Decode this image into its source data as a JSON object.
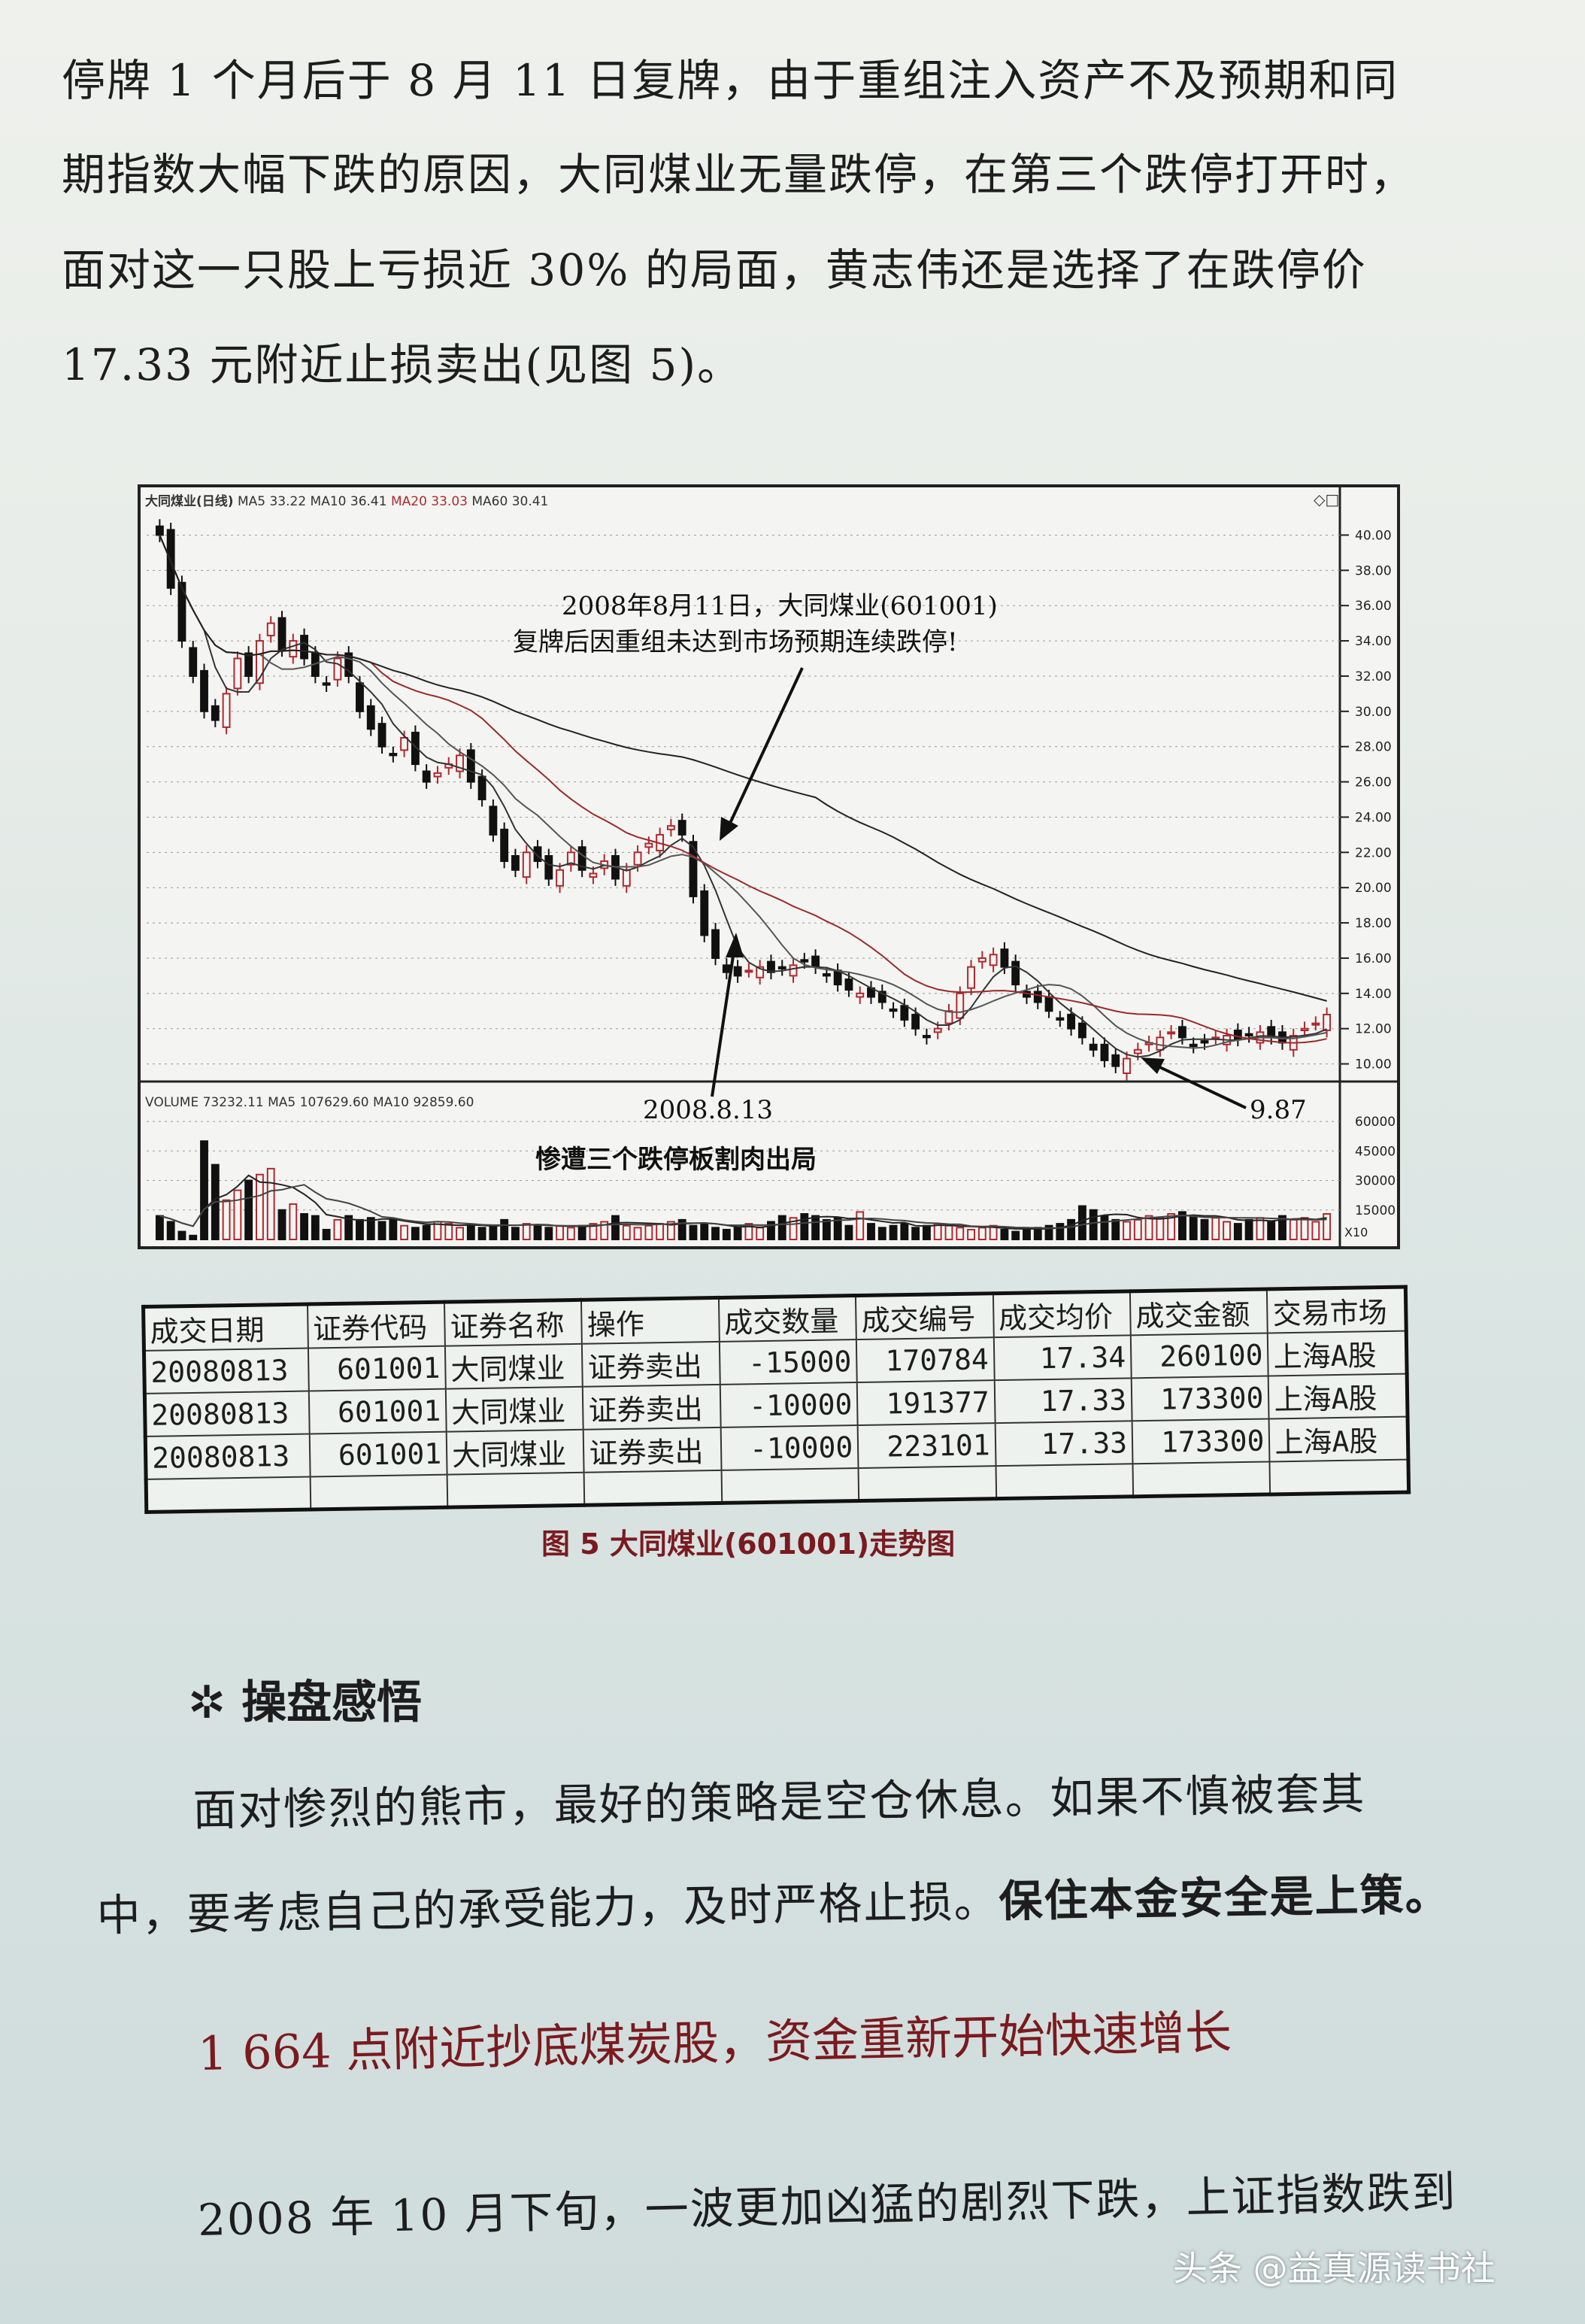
{
  "body_text": {
    "lines": [
      "停牌 1 个月后于 8 月 11 日复牌，由于重组注入资产不及预期和同",
      "期指数大幅下跌的原因，大同煤业无量跌停，在第三个跌停打开时，",
      "面对这一只股上亏损近 30% 的局面，黄志伟还是选择了在跌停价",
      "17.33 元附近止损卖出(见图 5)。"
    ]
  },
  "chart_data": {
    "type": "candlestick",
    "title": "大同煤业(日线)",
    "indicators": {
      "ma5": "MA5  33.22",
      "ma10": "MA10  36.41",
      "ma20": "MA20  33.03",
      "ma60": "MA60  30.41"
    },
    "volume_header": {
      "label": "VOLUME  73232.11",
      "ma5": "MA5  107629.60",
      "ma10": "MA10  92859.60"
    },
    "price_ticks": [
      "40.00",
      "38.00",
      "36.00",
      "34.00",
      "32.00",
      "30.00",
      "28.00",
      "26.00",
      "24.00",
      "22.00",
      "20.00",
      "18.00",
      "16.00",
      "14.00",
      "12.00",
      "10.00"
    ],
    "ylim": [
      9,
      41
    ],
    "volume_ticks": [
      "60000",
      "45000",
      "30000",
      "15000"
    ],
    "volume_unit": "X10",
    "volume_ylim": [
      0,
      65000
    ],
    "closes": [
      40,
      37,
      34,
      32,
      30,
      29.5,
      31,
      33,
      32,
      34,
      35,
      33.5,
      34,
      33,
      32,
      31.5,
      33,
      32,
      30,
      29,
      28,
      27.5,
      28.5,
      27,
      26,
      26.5,
      27,
      27.5,
      26,
      25,
      23,
      21.5,
      21,
      22,
      21.5,
      20.5,
      21,
      22,
      21,
      20.8,
      21.5,
      20.5,
      21,
      22,
      22.5,
      23,
      23.5,
      23,
      19.5,
      17.3,
      16,
      15.2,
      15,
      15.3,
      15.5,
      15.2,
      15.4,
      15.6,
      15.8,
      15.5,
      15,
      14.5,
      14.2,
      14,
      13.8,
      13.5,
      13,
      12.5,
      12,
      11.5,
      12,
      13,
      14,
      15.5,
      16,
      16.2,
      15.5,
      14.5,
      13.8,
      13.5,
      13,
      12.5,
      12,
      11.5,
      10.8,
      10.2,
      9.87,
      10.3,
      10.8,
      11.2,
      11.5,
      11.8,
      11.5,
      11,
      11.2,
      11.5,
      11.6,
      11.4,
      11.6,
      11.8,
      11.5,
      11.2,
      11.6,
      12,
      12.3,
      12.8
    ],
    "volumes": [
      12000,
      9000,
      4000,
      2000,
      50000,
      38000,
      20000,
      25000,
      30000,
      33000,
      36000,
      15000,
      18000,
      13000,
      12000,
      5000,
      10000,
      12000,
      10000,
      11000,
      9000,
      10000,
      7000,
      6000,
      7000,
      9000,
      8000,
      6000,
      7000,
      6000,
      7000,
      10000,
      6000,
      8000,
      7000,
      6000,
      7000,
      6000,
      7000,
      8000,
      9000,
      12000,
      7000,
      6000,
      7000,
      8000,
      9000,
      10000,
      7000,
      8000,
      6000,
      5000,
      6000,
      8000,
      6000,
      9000,
      12000,
      11000,
      13000,
      12000,
      10000,
      11000,
      7000,
      14000,
      8000,
      6000,
      7000,
      8000,
      6000,
      7000,
      8000,
      7000,
      6000,
      5000,
      6000,
      7000,
      5000,
      4000,
      5000,
      6000,
      7000,
      8000,
      10000,
      17000,
      15000,
      12000,
      10000,
      9000,
      10000,
      12000,
      11000,
      13000,
      14000,
      12000,
      10000,
      11000,
      9000,
      8000,
      10000,
      11000,
      9000,
      12000,
      10000,
      11000,
      9000,
      13000
    ],
    "annotations": {
      "resume_line1": "2008年8月11日，大同煤业(601001)",
      "resume_line2": "复牌后因重组未达到市场预期连续跌停!",
      "sell_date": "2008.8.13",
      "sell_note": "惨遭三个跌停板割肉出局",
      "low_value": "9.87"
    },
    "colors": {
      "up": "#b0282e",
      "down": "#111111",
      "ma_red": "#9b2a2a"
    }
  },
  "trade_table": {
    "headers": [
      "成交日期",
      "证券代码",
      "证券名称",
      "操作",
      "成交数量",
      "成交编号",
      "成交均价",
      "成交金额",
      "交易市场"
    ],
    "rows": [
      [
        "20080813",
        "601001",
        "大同煤业",
        "证券卖出",
        "-15000",
        "170784",
        "17.34",
        "260100",
        "上海A股"
      ],
      [
        "20080813",
        "601001",
        "大同煤业",
        "证券卖出",
        "-10000",
        "191377",
        "17.33",
        "173300",
        "上海A股"
      ],
      [
        "20080813",
        "601001",
        "大同煤业",
        "证券卖出",
        "-10000",
        "223101",
        "17.33",
        "173300",
        "上海A股"
      ]
    ]
  },
  "figure_caption": "图 5   大同煤业(601001)走势图",
  "section_heading": {
    "icon": "flower-bullet-icon",
    "text": "操盘感悟"
  },
  "section_text": {
    "line1": "面对惨烈的熊市，最好的策略是空仓休息。如果不慎被套其",
    "line2_normal": "中，要考虑自己的承受能力，及时严格止损。",
    "line2_bold": "保住本金安全是上策。"
  },
  "subheading": "1 664 点附近抄底煤炭股，资金重新开始快速增长",
  "final_line": "2008 年 10 月下旬，一波更加凶猛的剧烈下跌，上证指数跌到",
  "watermark": "头条 @益真源读书社"
}
